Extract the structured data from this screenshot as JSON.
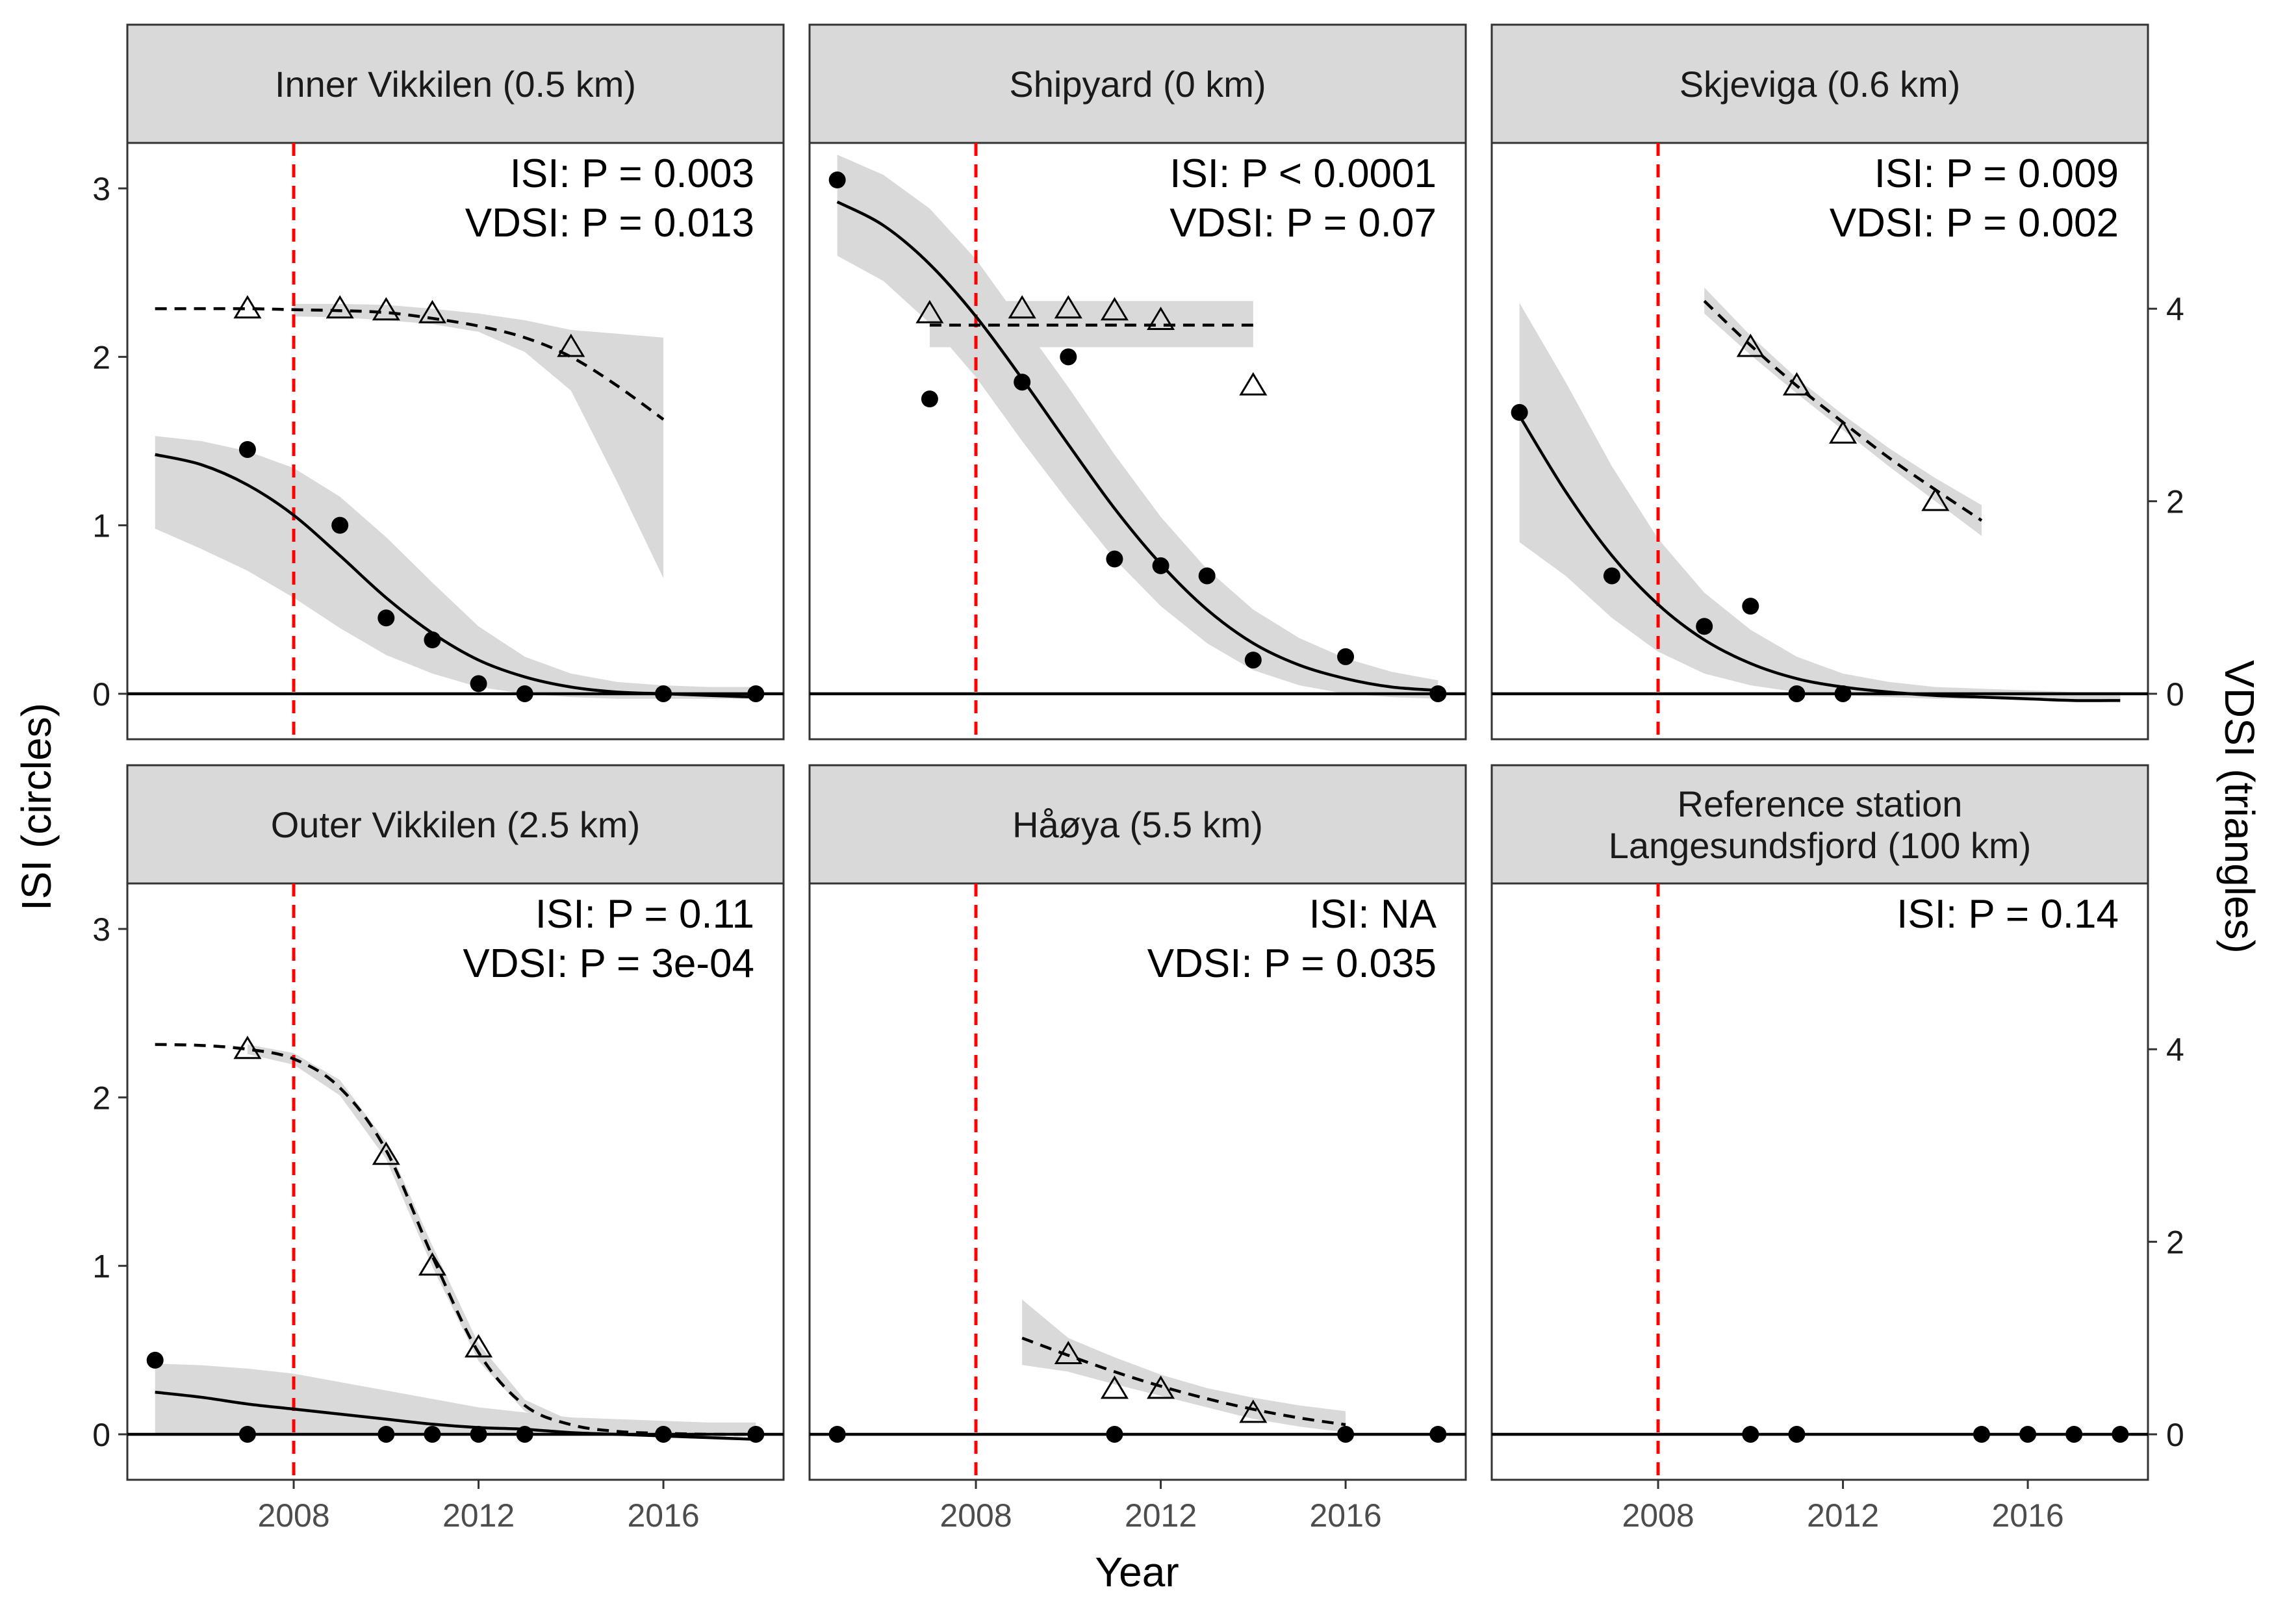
{
  "figure": {
    "ylabel_left": "ISI (circles)",
    "ylabel_right": "VDSI (triangles)",
    "xlabel": "Year",
    "reference_year": 2008,
    "colors": {
      "reference_line": "#ff0000",
      "ribbon": "#d9d9d9",
      "strip": "#d9d9d9",
      "ink": "#000000"
    }
  },
  "chart_data": {
    "type": "scatter",
    "x_ticks": [
      2008,
      2012,
      2016
    ],
    "x_range": [
      2004.4,
      2018.6
    ],
    "isi_ticks": [
      0,
      1,
      2,
      3
    ],
    "isi_range": [
      -0.27,
      3.27
    ],
    "vdsi_ticks": [
      0,
      2,
      4
    ],
    "vdsi_scale_factor": 1.75,
    "isi_series_name": "ISI",
    "vdsi_series_name": "VDSI",
    "panels": [
      {
        "title": "Inner Vikkilen (0.5 km)",
        "annotation_isi": "ISI: P =  0.003",
        "annotation_vdsi": "VDSI: P =  0.013",
        "isi_points": [
          [
            2007,
            1.45
          ],
          [
            2009,
            1.0
          ],
          [
            2010,
            0.45
          ],
          [
            2011,
            0.32
          ],
          [
            2012,
            0.06
          ],
          [
            2013,
            0.0
          ],
          [
            2016,
            0.0
          ],
          [
            2018,
            0.0
          ]
        ],
        "isi_fit": [
          [
            2005,
            1.42
          ],
          [
            2006,
            1.36
          ],
          [
            2007,
            1.24
          ],
          [
            2008,
            1.06
          ],
          [
            2009,
            0.82
          ],
          [
            2010,
            0.57
          ],
          [
            2011,
            0.36
          ],
          [
            2012,
            0.2
          ],
          [
            2013,
            0.1
          ],
          [
            2014,
            0.04
          ],
          [
            2015,
            0.01
          ],
          [
            2016,
            0.0
          ],
          [
            2017,
            -0.01
          ],
          [
            2018,
            -0.02
          ]
        ],
        "isi_ribbon": [
          [
            2005,
            0.98,
            1.53
          ],
          [
            2006,
            0.86,
            1.5
          ],
          [
            2007,
            0.73,
            1.44
          ],
          [
            2008,
            0.57,
            1.34
          ],
          [
            2009,
            0.39,
            1.17
          ],
          [
            2010,
            0.23,
            0.93
          ],
          [
            2011,
            0.12,
            0.66
          ],
          [
            2012,
            0.04,
            0.4
          ],
          [
            2013,
            0.0,
            0.22
          ],
          [
            2014,
            -0.02,
            0.12
          ],
          [
            2015,
            -0.03,
            0.07
          ],
          [
            2016,
            -0.03,
            0.05
          ],
          [
            2017,
            -0.03,
            0.04
          ],
          [
            2018,
            -0.03,
            0.04
          ]
        ],
        "vdsi_points": [
          [
            2007,
            4.0
          ],
          [
            2009,
            4.0
          ],
          [
            2010,
            3.98
          ],
          [
            2011,
            3.95
          ],
          [
            2014,
            3.6
          ]
        ],
        "vdsi_fit": [
          [
            2005,
            4.0
          ],
          [
            2007,
            4.0
          ],
          [
            2008,
            3.99
          ],
          [
            2009,
            3.98
          ],
          [
            2010,
            3.96
          ],
          [
            2011,
            3.9
          ],
          [
            2012,
            3.82
          ],
          [
            2013,
            3.7
          ],
          [
            2014,
            3.5
          ],
          [
            2015,
            3.2
          ],
          [
            2016,
            2.85
          ]
        ],
        "vdsi_ribbon": [
          [
            2008,
            3.92,
            4.05
          ],
          [
            2009,
            3.91,
            4.05
          ],
          [
            2010,
            3.88,
            4.04
          ],
          [
            2011,
            3.84,
            4.0
          ],
          [
            2012,
            3.76,
            3.95
          ],
          [
            2013,
            3.55,
            3.88
          ],
          [
            2014,
            3.15,
            3.78
          ],
          [
            2015,
            2.2,
            3.74
          ],
          [
            2016,
            1.2,
            3.7
          ]
        ]
      },
      {
        "title": "Shipyard (0 km)",
        "annotation_isi": "ISI: P < 0.0001",
        "annotation_vdsi": "VDSI: P =  0.07",
        "isi_points": [
          [
            2005,
            3.05
          ],
          [
            2007,
            1.75
          ],
          [
            2009,
            1.85
          ],
          [
            2010,
            2.0
          ],
          [
            2011,
            0.8
          ],
          [
            2012,
            0.76
          ],
          [
            2013,
            0.7
          ],
          [
            2014,
            0.2
          ],
          [
            2016,
            0.22
          ],
          [
            2018,
            0.0
          ]
        ],
        "isi_fit": [
          [
            2005,
            2.92
          ],
          [
            2006,
            2.78
          ],
          [
            2007,
            2.55
          ],
          [
            2008,
            2.24
          ],
          [
            2009,
            1.87
          ],
          [
            2010,
            1.48
          ],
          [
            2011,
            1.1
          ],
          [
            2012,
            0.77
          ],
          [
            2013,
            0.5
          ],
          [
            2014,
            0.3
          ],
          [
            2015,
            0.17
          ],
          [
            2016,
            0.09
          ],
          [
            2017,
            0.04
          ],
          [
            2018,
            0.02
          ]
        ],
        "isi_ribbon": [
          [
            2005,
            2.6,
            3.2
          ],
          [
            2006,
            2.45,
            3.08
          ],
          [
            2007,
            2.2,
            2.88
          ],
          [
            2008,
            1.88,
            2.58
          ],
          [
            2009,
            1.5,
            2.2
          ],
          [
            2010,
            1.14,
            1.82
          ],
          [
            2011,
            0.8,
            1.42
          ],
          [
            2012,
            0.52,
            1.05
          ],
          [
            2013,
            0.3,
            0.74
          ],
          [
            2014,
            0.14,
            0.5
          ],
          [
            2015,
            0.05,
            0.33
          ],
          [
            2016,
            0.0,
            0.21
          ],
          [
            2017,
            -0.02,
            0.13
          ],
          [
            2018,
            -0.03,
            0.08
          ]
        ],
        "vdsi_points": [
          [
            2007,
            3.95
          ],
          [
            2009,
            4.0
          ],
          [
            2010,
            4.0
          ],
          [
            2011,
            3.98
          ],
          [
            2012,
            3.88
          ],
          [
            2014,
            3.2
          ]
        ],
        "vdsi_fit": [
          [
            2007,
            3.83
          ],
          [
            2014,
            3.83
          ]
        ],
        "vdsi_ribbon": [
          [
            2007,
            3.6,
            4.08
          ],
          [
            2014,
            3.6,
            4.08
          ]
        ]
      },
      {
        "title": "Skjeviga (0.6 km)",
        "annotation_isi": "ISI: P =  0.009",
        "annotation_vdsi": "VDSI: P =  0.002",
        "isi_points": [
          [
            2005,
            1.67
          ],
          [
            2007,
            0.7
          ],
          [
            2009,
            0.4
          ],
          [
            2010,
            0.52
          ],
          [
            2011,
            0.0
          ],
          [
            2012,
            0.0
          ]
        ],
        "isi_fit": [
          [
            2005,
            1.65
          ],
          [
            2006,
            1.2
          ],
          [
            2007,
            0.82
          ],
          [
            2008,
            0.53
          ],
          [
            2009,
            0.32
          ],
          [
            2010,
            0.18
          ],
          [
            2011,
            0.09
          ],
          [
            2012,
            0.04
          ],
          [
            2013,
            0.01
          ],
          [
            2014,
            -0.01
          ],
          [
            2015,
            -0.02
          ],
          [
            2016,
            -0.03
          ],
          [
            2017,
            -0.04
          ],
          [
            2018,
            -0.04
          ]
        ],
        "isi_ribbon": [
          [
            2005,
            0.9,
            2.32
          ],
          [
            2006,
            0.7,
            1.85
          ],
          [
            2007,
            0.45,
            1.35
          ],
          [
            2008,
            0.25,
            0.92
          ],
          [
            2009,
            0.12,
            0.6
          ],
          [
            2010,
            0.05,
            0.38
          ],
          [
            2011,
            0.01,
            0.22
          ],
          [
            2012,
            -0.01,
            0.12
          ],
          [
            2013,
            -0.02,
            0.07
          ],
          [
            2014,
            -0.03,
            0.04
          ],
          [
            2015,
            -0.03,
            0.03
          ],
          [
            2016,
            -0.04,
            0.02
          ],
          [
            2017,
            -0.04,
            0.01
          ],
          [
            2018,
            -0.04,
            0.01
          ]
        ],
        "vdsi_points": [
          [
            2010,
            3.6
          ],
          [
            2011,
            3.2
          ],
          [
            2012,
            2.7
          ],
          [
            2014,
            2.0
          ]
        ],
        "vdsi_fit": [
          [
            2009,
            4.08
          ],
          [
            2010,
            3.62
          ],
          [
            2011,
            3.2
          ],
          [
            2012,
            2.82
          ],
          [
            2013,
            2.45
          ],
          [
            2014,
            2.12
          ],
          [
            2015,
            1.8
          ]
        ],
        "vdsi_ribbon": [
          [
            2009,
            3.95,
            4.22
          ],
          [
            2010,
            3.52,
            3.72
          ],
          [
            2011,
            3.12,
            3.28
          ],
          [
            2012,
            2.74,
            2.9
          ],
          [
            2013,
            2.36,
            2.55
          ],
          [
            2014,
            2.0,
            2.24
          ],
          [
            2015,
            1.64,
            1.96
          ]
        ]
      },
      {
        "title": "Outer Vikkilen (2.5 km)",
        "annotation_isi": "ISI: P =  0.11",
        "annotation_vdsi": "VDSI: P =  3e-04",
        "isi_points": [
          [
            2005,
            0.44
          ],
          [
            2007,
            0.0
          ],
          [
            2010,
            0.0
          ],
          [
            2011,
            0.0
          ],
          [
            2012,
            0.0
          ],
          [
            2013,
            0.0
          ],
          [
            2016,
            0.0
          ],
          [
            2018,
            0.0
          ]
        ],
        "isi_fit": [
          [
            2005,
            0.25
          ],
          [
            2006,
            0.22
          ],
          [
            2007,
            0.18
          ],
          [
            2008,
            0.15
          ],
          [
            2009,
            0.12
          ],
          [
            2010,
            0.09
          ],
          [
            2011,
            0.06
          ],
          [
            2012,
            0.04
          ],
          [
            2013,
            0.03
          ],
          [
            2014,
            0.01
          ],
          [
            2015,
            0.0
          ],
          [
            2016,
            -0.01
          ],
          [
            2017,
            -0.02
          ],
          [
            2018,
            -0.03
          ]
        ],
        "isi_ribbon": [
          [
            2005,
            0.0,
            0.42
          ],
          [
            2006,
            0.0,
            0.41
          ],
          [
            2007,
            0.0,
            0.39
          ],
          [
            2008,
            0.0,
            0.36
          ],
          [
            2009,
            0.0,
            0.31
          ],
          [
            2010,
            0.0,
            0.26
          ],
          [
            2011,
            0.0,
            0.21
          ],
          [
            2012,
            0.0,
            0.16
          ],
          [
            2013,
            0.0,
            0.13
          ],
          [
            2014,
            0.0,
            0.1
          ],
          [
            2015,
            0.0,
            0.09
          ],
          [
            2016,
            0.0,
            0.08
          ],
          [
            2017,
            0.0,
            0.07
          ],
          [
            2018,
            0.0,
            0.07
          ]
        ],
        "vdsi_points": [
          [
            2007,
            4.0
          ],
          [
            2010,
            2.9
          ],
          [
            2011,
            1.75
          ],
          [
            2012,
            0.9
          ]
        ],
        "vdsi_fit": [
          [
            2005,
            4.05
          ],
          [
            2006,
            4.04
          ],
          [
            2007,
            4.0
          ],
          [
            2008,
            3.9
          ],
          [
            2009,
            3.6
          ],
          [
            2010,
            2.95
          ],
          [
            2011,
            1.85
          ],
          [
            2012,
            0.85
          ],
          [
            2013,
            0.3
          ],
          [
            2014,
            0.1
          ],
          [
            2015,
            0.03
          ],
          [
            2016,
            0.01
          ],
          [
            2017,
            0.0
          ],
          [
            2018,
            0.0
          ]
        ],
        "vdsi_ribbon": [
          [
            2007,
            3.95,
            4.05
          ],
          [
            2008,
            3.84,
            3.96
          ],
          [
            2009,
            3.52,
            3.68
          ],
          [
            2010,
            2.86,
            3.04
          ],
          [
            2011,
            1.74,
            1.96
          ],
          [
            2012,
            0.76,
            0.94
          ],
          [
            2013,
            0.24,
            0.36
          ],
          [
            2014,
            0.06,
            0.14
          ]
        ]
      },
      {
        "title": "Håøya (5.5 km)",
        "annotation_isi": "ISI: NA",
        "annotation_vdsi": "VDSI: P =  0.035",
        "isi_points": [
          [
            2005,
            0.0
          ],
          [
            2011,
            0.0
          ],
          [
            2016,
            0.0
          ],
          [
            2018,
            0.0
          ]
        ],
        "isi_fit": [],
        "isi_ribbon": [],
        "vdsi_points": [
          [
            2010,
            0.83
          ],
          [
            2011,
            0.47
          ],
          [
            2012,
            0.47
          ],
          [
            2014,
            0.22
          ]
        ],
        "vdsi_fit": [
          [
            2009,
            1.0
          ],
          [
            2010,
            0.82
          ],
          [
            2011,
            0.65
          ],
          [
            2012,
            0.5
          ],
          [
            2013,
            0.37
          ],
          [
            2014,
            0.26
          ],
          [
            2015,
            0.17
          ],
          [
            2016,
            0.1
          ]
        ],
        "vdsi_ribbon": [
          [
            2009,
            0.72,
            1.4
          ],
          [
            2010,
            0.65,
            1.0
          ],
          [
            2011,
            0.52,
            0.8
          ],
          [
            2012,
            0.4,
            0.62
          ],
          [
            2013,
            0.28,
            0.48
          ],
          [
            2014,
            0.16,
            0.38
          ],
          [
            2015,
            0.08,
            0.3
          ],
          [
            2016,
            0.02,
            0.24
          ]
        ]
      },
      {
        "title": "Reference station\nLangesundsfjord (100 km)",
        "annotation_isi": "ISI: P =  0.14",
        "annotation_vdsi": "",
        "isi_points": [
          [
            2010,
            0.0
          ],
          [
            2011,
            0.0
          ],
          [
            2015,
            0.0
          ],
          [
            2016,
            0.0
          ],
          [
            2017,
            0.0
          ],
          [
            2018,
            0.0
          ]
        ],
        "isi_fit": [],
        "isi_ribbon": [],
        "vdsi_points": [],
        "vdsi_fit": [],
        "vdsi_ribbon": []
      }
    ]
  }
}
